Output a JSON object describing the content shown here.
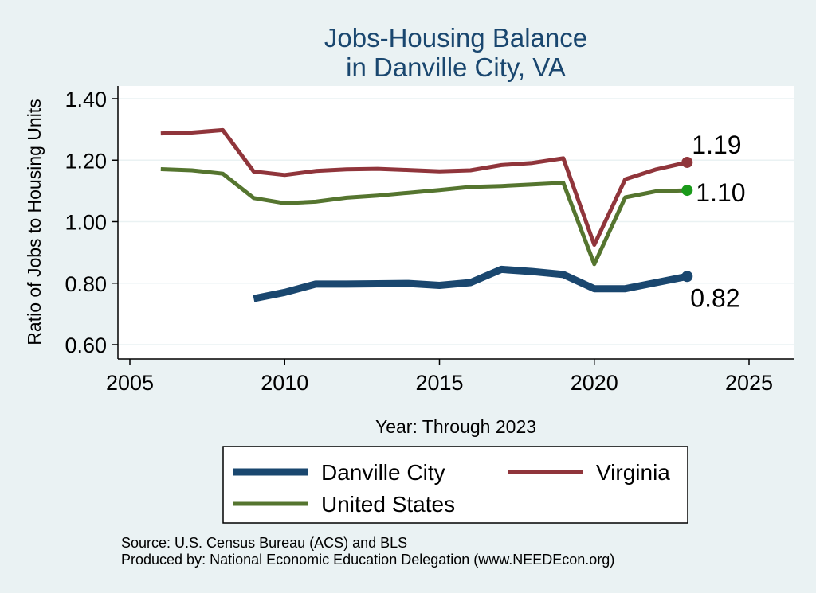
{
  "chart_data": {
    "type": "line",
    "title": [
      "Jobs-Housing Balance",
      "in Danville City, VA"
    ],
    "xlabel": "Year: Through 2023",
    "ylabel": "Ratio of Jobs to Housing Units",
    "xlim": [
      2004.8,
      2026.5
    ],
    "ylim": [
      0.56,
      1.44
    ],
    "x_ticks": [
      2005,
      2010,
      2015,
      2020,
      2025
    ],
    "y_ticks": [
      0.6,
      0.8,
      1.0,
      1.2,
      1.4
    ],
    "y_tick_labels": [
      "0.60",
      "0.80",
      "1.00",
      "1.20",
      "1.40"
    ],
    "grid": "horizontal",
    "legend_position": "bottom",
    "series": [
      {
        "name": "Danville City",
        "color": "#1a476f",
        "x": [
          2009,
          2010,
          2011,
          2012,
          2013,
          2014,
          2015,
          2016,
          2017,
          2018,
          2019,
          2020,
          2021,
          2022,
          2023
        ],
        "values": [
          0.75,
          0.77,
          0.797,
          0.797,
          0.798,
          0.799,
          0.793,
          0.802,
          0.845,
          0.838,
          0.828,
          0.782,
          0.782,
          0.802,
          0.822
        ],
        "end_label": "0.82"
      },
      {
        "name": "Virginia",
        "color": "#90353b",
        "x": [
          2006,
          2007,
          2008,
          2009,
          2010,
          2011,
          2012,
          2013,
          2014,
          2015,
          2016,
          2017,
          2018,
          2019,
          2020,
          2021,
          2022,
          2023
        ],
        "values": [
          1.287,
          1.29,
          1.298,
          1.163,
          1.152,
          1.165,
          1.17,
          1.172,
          1.168,
          1.164,
          1.167,
          1.184,
          1.191,
          1.206,
          0.925,
          1.138,
          1.17,
          1.193
        ],
        "end_label": "1.19"
      },
      {
        "name": "United States",
        "color": "#55752f",
        "x": [
          2006,
          2007,
          2008,
          2009,
          2010,
          2011,
          2012,
          2013,
          2014,
          2015,
          2016,
          2017,
          2018,
          2019,
          2020,
          2021,
          2022,
          2023
        ],
        "values": [
          1.171,
          1.167,
          1.156,
          1.077,
          1.06,
          1.065,
          1.078,
          1.085,
          1.094,
          1.103,
          1.113,
          1.116,
          1.121,
          1.126,
          0.862,
          1.079,
          1.099,
          1.102
        ],
        "end_label": "1.10"
      }
    ],
    "note": [
      "Source: U.S. Census Bureau (ACS) and BLS",
      "Produced by: National Economic Education Delegation (www.NEEDEcon.org)"
    ]
  }
}
